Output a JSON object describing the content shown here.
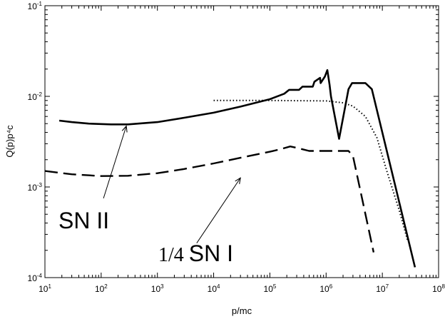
{
  "chart_data": {
    "type": "line",
    "xscale": "log",
    "yscale": "log",
    "xlabel": "p/mc",
    "ylabel": "Q(p)p⁴c",
    "xlim": [
      10,
      100000000
    ],
    "ylim": [
      0.0001,
      0.1
    ],
    "x_ticks": [
      {
        "value": 10,
        "base": "10",
        "exp": "1"
      },
      {
        "value": 100,
        "base": "10",
        "exp": "2"
      },
      {
        "value": 1000,
        "base": "10",
        "exp": "3"
      },
      {
        "value": 10000,
        "base": "10",
        "exp": "4"
      },
      {
        "value": 100000,
        "base": "10",
        "exp": "5"
      },
      {
        "value": 1000000,
        "base": "10",
        "exp": "6"
      },
      {
        "value": 10000000,
        "base": "10",
        "exp": "7"
      },
      {
        "value": 100000000,
        "base": "10",
        "exp": "8"
      }
    ],
    "y_ticks": [
      {
        "value": 0.0001,
        "base": "10",
        "exp": "-4"
      },
      {
        "value": 0.001,
        "base": "10",
        "exp": "-3"
      },
      {
        "value": 0.01,
        "base": "10",
        "exp": "-2"
      },
      {
        "value": 0.1,
        "base": "10",
        "exp": "-1"
      }
    ],
    "grid": false,
    "series": [
      {
        "style": "solid",
        "points": [
          [
            18,
            0.0054
          ],
          [
            30,
            0.0052
          ],
          [
            60,
            0.005
          ],
          [
            150,
            0.0049
          ],
          [
            300,
            0.0049
          ],
          [
            1000,
            0.0052
          ],
          [
            3000,
            0.0058
          ],
          [
            10000,
            0.0066
          ],
          [
            30000,
            0.0077
          ],
          [
            100000,
            0.0093
          ],
          [
            180000,
            0.0107
          ],
          [
            220000,
            0.0118
          ],
          [
            330000,
            0.0118
          ],
          [
            380000,
            0.0128
          ],
          [
            580000,
            0.0128
          ],
          [
            620000,
            0.0145
          ],
          [
            780000,
            0.016
          ],
          [
            800000,
            0.014
          ],
          [
            950000,
            0.0165
          ],
          [
            1050000,
            0.0195
          ],
          [
            1150000,
            0.0135
          ],
          [
            1220000,
            0.01
          ],
          [
            1700000,
            0.0034
          ],
          [
            2500000,
            0.012
          ],
          [
            2900000,
            0.014
          ],
          [
            5000000,
            0.014
          ],
          [
            6500000,
            0.012
          ],
          [
            38000000,
            0.00013
          ]
        ]
      },
      {
        "style": "dashed",
        "points": [
          [
            10,
            0.0015
          ],
          [
            30,
            0.00138
          ],
          [
            100,
            0.00132
          ],
          [
            300,
            0.00133
          ],
          [
            1000,
            0.00142
          ],
          [
            3000,
            0.00158
          ],
          [
            10000,
            0.00182
          ],
          [
            30000,
            0.0021
          ],
          [
            100000,
            0.00245
          ],
          [
            150000,
            0.0026
          ],
          [
            230000,
            0.0028
          ],
          [
            300000,
            0.0027
          ],
          [
            500000,
            0.0025
          ],
          [
            1000000,
            0.0025
          ],
          [
            2500000,
            0.0025
          ],
          [
            3000000,
            0.0022
          ],
          [
            7000000,
            0.00019
          ]
        ]
      },
      {
        "style": "dotted",
        "points": [
          [
            10000,
            0.009
          ],
          [
            100000,
            0.009
          ],
          [
            1000000,
            0.0089
          ],
          [
            2000000,
            0.0085
          ],
          [
            3000000,
            0.0078
          ],
          [
            5000000,
            0.006
          ],
          [
            8000000,
            0.0035
          ],
          [
            12000000,
            0.0015
          ],
          [
            20000000,
            0.00055
          ],
          [
            28000000,
            0.00026
          ]
        ]
      }
    ],
    "annotations": [
      {
        "text": "SN II",
        "font": "sans",
        "arrow_from": [
          110,
          0.00075
        ],
        "arrow_to": [
          280,
          0.0047
        ]
      },
      {
        "prefix": "1/4",
        "text": "SN I",
        "font": "mixed",
        "arrow_from": [
          5000,
          0.00024
        ],
        "arrow_to": [
          30000,
          0.00126
        ]
      }
    ]
  }
}
